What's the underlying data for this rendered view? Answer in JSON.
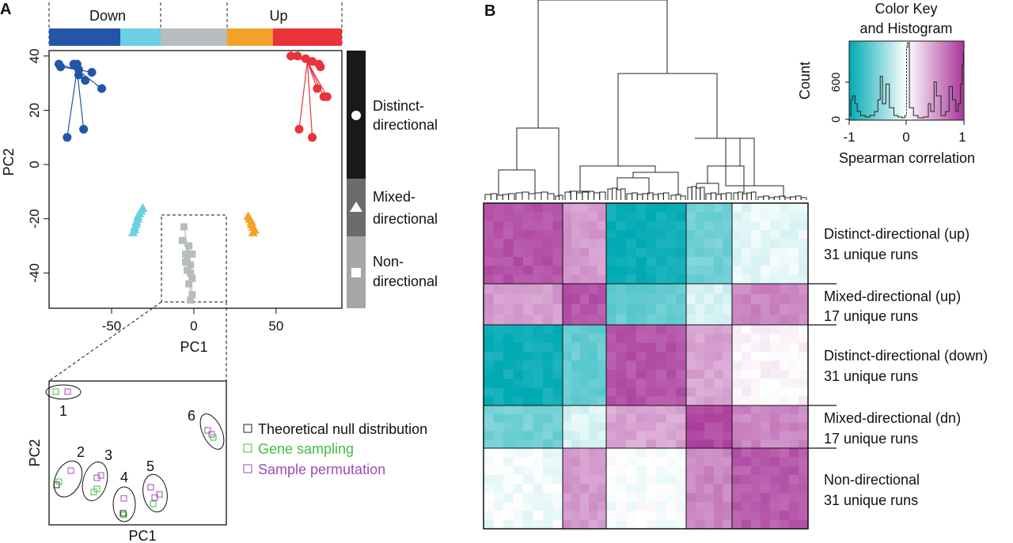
{
  "panel_a": {
    "label": "A",
    "bar_labels": {
      "down": "Down",
      "up": "Up"
    },
    "direction_bar_colors": [
      "#2455a8",
      "#6cd0e3",
      "#b7bcbf",
      "#f4a12a",
      "#e8333a"
    ],
    "side_labels": [
      {
        "lines": [
          "Distinct-",
          "directional"
        ],
        "shape": "circle"
      },
      {
        "lines": [
          "Mixed-",
          "directional"
        ],
        "shape": "triangle"
      },
      {
        "lines": [
          "Non-",
          "directional"
        ],
        "shape": "square"
      }
    ],
    "inset": {
      "xlabel": "PC1",
      "ylabel": "PC2",
      "group_labels": [
        "1",
        "2",
        "3",
        "4",
        "5",
        "6"
      ],
      "legend": [
        {
          "label": "Theoretical null distribution",
          "color": "#222222"
        },
        {
          "label": "Gene sampling",
          "color": "#3fbf3f"
        },
        {
          "label": "Sample permutation",
          "color": "#a24ab8"
        }
      ]
    }
  },
  "panel_b": {
    "label": "B",
    "color_key": {
      "title_line1": "Color Key",
      "title_line2": "and Histogram",
      "ylabel": "Count",
      "xlabel": "Spearman correlation",
      "y_ticks": [
        "0",
        "600"
      ],
      "x_ticks": [
        "-1",
        "0",
        "1"
      ]
    },
    "row_labels": [
      {
        "name": "Distinct-directional (up)",
        "runs": "31 unique runs"
      },
      {
        "name": "Mixed-directional (up)",
        "runs": "17 unique runs"
      },
      {
        "name": "Distinct-directional (down)",
        "runs": "31 unique runs"
      },
      {
        "name": "Mixed-directional (dn)",
        "runs": "17 unique runs"
      },
      {
        "name": "Non-directional",
        "runs": "31 unique runs"
      }
    ]
  },
  "chart_data": [
    {
      "type": "scatter",
      "xlabel": "PC1",
      "ylabel": "PC2",
      "xlim": [
        -88,
        90
      ],
      "ylim": [
        -53,
        42
      ],
      "x_ticks": [
        -50,
        0,
        50
      ],
      "y_ticks": [
        -40,
        -20,
        0,
        20,
        40
      ],
      "series": [
        {
          "color": "#2455a8",
          "marker": "circle",
          "centroid": [
            -71,
            35
          ],
          "points": [
            [
              -82,
              37
            ],
            [
              -81,
              36
            ],
            [
              -73,
              37
            ],
            [
              -71,
              37
            ],
            [
              -70,
              35
            ],
            [
              -70,
              33
            ],
            [
              -66,
              31
            ],
            [
              -62,
              34
            ],
            [
              -56,
              28
            ],
            [
              -67,
              13
            ],
            [
              -77,
              10
            ]
          ]
        },
        {
          "color": "#e8333a",
          "marker": "circle",
          "centroid": [
            69,
            38
          ],
          "points": [
            [
              59,
              40
            ],
            [
              63,
              40
            ],
            [
              68,
              39
            ],
            [
              72,
              38
            ],
            [
              76,
              37
            ],
            [
              77,
              36
            ],
            [
              79,
              25
            ],
            [
              81,
              25
            ],
            [
              75,
              28
            ],
            [
              64,
              13
            ],
            [
              72,
              10
            ]
          ]
        },
        {
          "color": "#6cd0e3",
          "marker": "triangle",
          "points": [
            [
              -31,
              -16
            ],
            [
              -32,
              -17
            ],
            [
              -33,
              -18
            ],
            [
              -34,
              -19
            ],
            [
              -34,
              -20
            ],
            [
              -35,
              -21
            ],
            [
              -35,
              -22
            ],
            [
              -36,
              -23
            ],
            [
              -36,
              -24
            ],
            [
              -37,
              -25
            ]
          ]
        },
        {
          "color": "#f4a12a",
          "marker": "triangle",
          "points": [
            [
              33,
              -19
            ],
            [
              34,
              -20
            ],
            [
              35,
              -21
            ],
            [
              35,
              -22
            ],
            [
              36,
              -23
            ],
            [
              37,
              -24
            ],
            [
              36,
              -25
            ]
          ]
        },
        {
          "color": "#b7bcbf",
          "marker": "square",
          "centroid": [
            -3,
            -33
          ],
          "points": [
            [
              -6,
              -23
            ],
            [
              -7,
              -28
            ],
            [
              -3,
              -30
            ],
            [
              -5,
              -33
            ],
            [
              -1,
              -33
            ],
            [
              -4,
              -35
            ],
            [
              -5,
              -36
            ],
            [
              -2,
              -37
            ],
            [
              -4,
              -39
            ],
            [
              -2,
              -40
            ],
            [
              -1,
              -42
            ],
            [
              -3,
              -44
            ],
            [
              -1,
              -48
            ],
            [
              -2,
              -50
            ]
          ]
        }
      ]
    },
    {
      "type": "heatmap",
      "value_range": [
        -1,
        1
      ],
      "x_groups": [
        "Distinct-directional (up)",
        "Mixed-directional (up)",
        "Distinct-directional (down)",
        "Mixed-directional (dn)",
        "Non-directional"
      ],
      "row_groups": [
        "Distinct-directional (up)",
        "Mixed-directional (up)",
        "Distinct-directional (down)",
        "Mixed-directional (dn)",
        "Non-directional"
      ],
      "block_correlations": [
        [
          0.85,
          0.5,
          -0.95,
          -0.55,
          -0.1
        ],
        [
          0.5,
          0.85,
          -0.6,
          -0.15,
          0.6
        ],
        [
          -0.95,
          -0.6,
          0.85,
          0.45,
          0.05
        ],
        [
          -0.55,
          -0.15,
          0.45,
          0.9,
          0.6
        ],
        [
          -0.05,
          0.5,
          -0.02,
          0.6,
          0.82
        ]
      ],
      "color_scale": {
        "low": "#00aab4",
        "mid": "#ffffff",
        "high": "#a8369a"
      }
    }
  ]
}
